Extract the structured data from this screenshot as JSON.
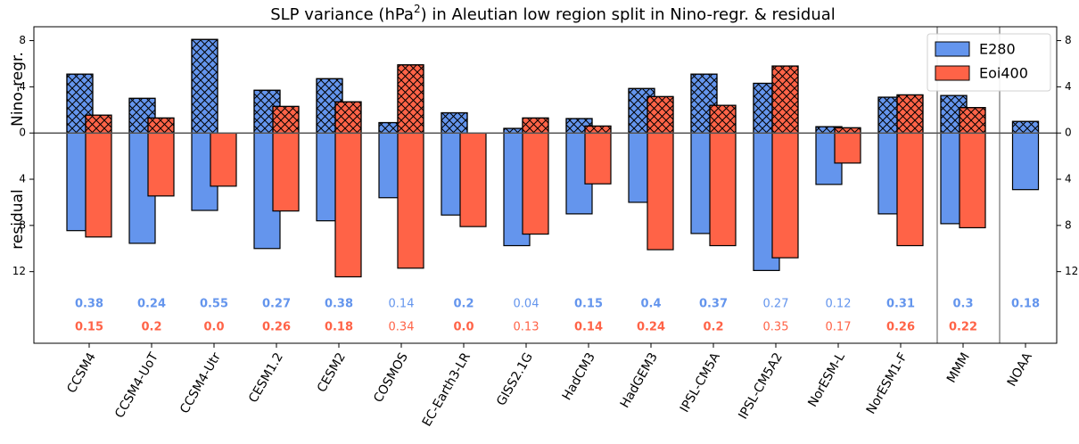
{
  "chart_data": {
    "type": "diverging-bar",
    "title": {
      "prefix": "SLP variance (hPa",
      "superscript": "2",
      "suffix": ") in Aleutian low region split in Nino-regr. & residual"
    },
    "ylabel_upper": "Nino-regr.",
    "ylabel_lower": "residual",
    "categories": [
      "CCSM4",
      "CCSM4-UoT",
      "CCSM4-Utr",
      "CESM1.2",
      "CESM2",
      "COSMOS",
      "EC-Earth3-LR",
      "GISS2.1G",
      "HadCM3",
      "HadGEM3",
      "IPSL-CM5A",
      "IPSL-CM5A2",
      "NorESM-L",
      "NorESM1-F",
      "MMM",
      "NOAA"
    ],
    "series": [
      {
        "name": "E280",
        "color": "#6495ed",
        "values": [
          5.1,
          3.0,
          8.1,
          3.7,
          4.7,
          0.9,
          1.75,
          0.4,
          1.25,
          3.85,
          5.1,
          4.3,
          0.55,
          3.1,
          3.25,
          1.0
        ],
        "residual_values": [
          -8.45,
          -9.55,
          -6.7,
          -10.0,
          -7.6,
          -5.6,
          -7.1,
          -9.75,
          -7.0,
          -6.0,
          -8.7,
          -11.9,
          -4.45,
          -7.0,
          -7.85,
          -4.9
        ],
        "annotation_values": [
          0.38,
          0.24,
          0.55,
          0.27,
          0.38,
          0.14,
          0.2,
          0.04,
          0.15,
          0.4,
          0.37,
          0.27,
          0.12,
          0.31,
          0.3,
          0.18
        ],
        "annotation_bold": [
          true,
          true,
          true,
          true,
          true,
          false,
          true,
          false,
          true,
          true,
          true,
          false,
          false,
          true,
          true,
          true
        ]
      },
      {
        "name": "Eoi400",
        "color": "#ff6347",
        "values": [
          1.55,
          1.3,
          0,
          2.3,
          2.7,
          5.9,
          0,
          1.3,
          0.6,
          3.15,
          2.4,
          5.8,
          0.45,
          3.3,
          2.2,
          null
        ],
        "residual_values": [
          -9.0,
          -5.45,
          -4.6,
          -6.75,
          -12.45,
          -11.7,
          -8.1,
          -8.75,
          -4.4,
          -10.1,
          -9.75,
          -10.8,
          -2.6,
          -9.75,
          -8.2,
          null
        ],
        "annotation_values": [
          0.15,
          0.2,
          0.0,
          0.26,
          0.18,
          0.34,
          0.0,
          0.13,
          0.14,
          0.24,
          0.2,
          0.35,
          0.17,
          0.26,
          0.22,
          null
        ],
        "annotation_value_labels": [
          "0.15",
          "0.2",
          "0.0",
          "0.26",
          "0.18",
          "0.34",
          "0.0",
          "0.13",
          "0.14",
          "0.24",
          "0.2",
          "0.35",
          "0.17",
          "0.26",
          "0.22",
          null
        ],
        "annotation_bold": [
          true,
          true,
          true,
          true,
          true,
          false,
          true,
          false,
          true,
          true,
          true,
          false,
          false,
          true,
          true,
          null
        ]
      }
    ],
    "ylim": [
      -18.2,
      9.2
    ],
    "yticks": [
      {
        "value": -12,
        "label": "12"
      },
      {
        "value": -8,
        "label": "8"
      },
      {
        "value": -4,
        "label": "4"
      },
      0,
      4,
      8
    ],
    "hatch_upper": true,
    "legend": "upper right",
    "grid": false
  }
}
